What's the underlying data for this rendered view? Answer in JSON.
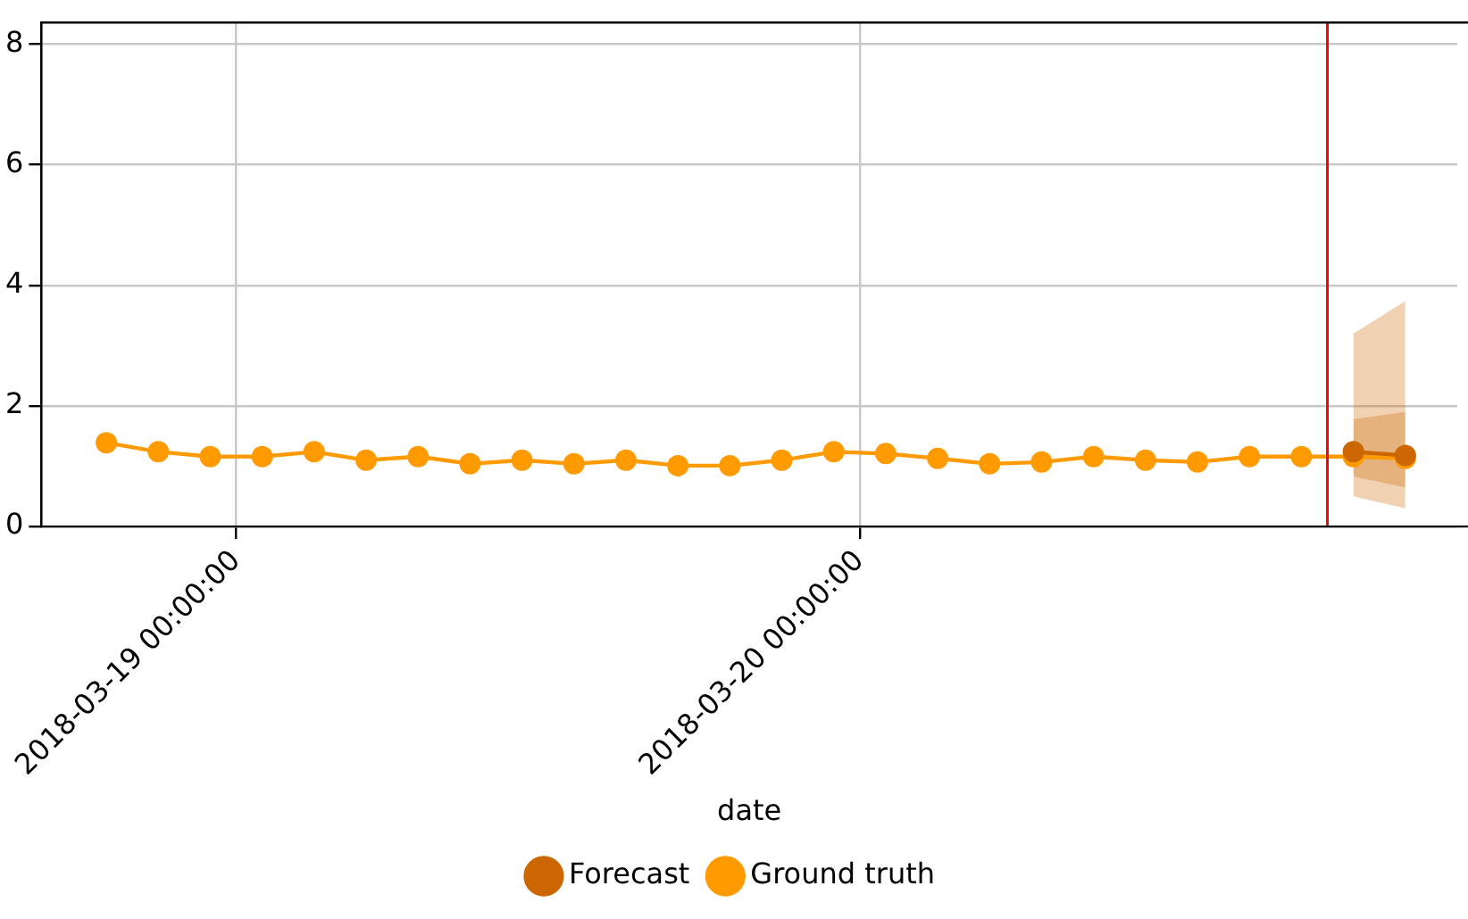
{
  "chart_data": {
    "type": "line",
    "xlabel": "date",
    "x": [
      "2018-03-18T19:00",
      "2018-03-18T21:00",
      "2018-03-18T23:00",
      "2018-03-19T01:00",
      "2018-03-19T03:00",
      "2018-03-19T05:00",
      "2018-03-19T07:00",
      "2018-03-19T09:00",
      "2018-03-19T11:00",
      "2018-03-19T13:00",
      "2018-03-19T15:00",
      "2018-03-19T17:00",
      "2018-03-19T19:00",
      "2018-03-19T21:00",
      "2018-03-19T23:00",
      "2018-03-20T01:00",
      "2018-03-20T03:00",
      "2018-03-20T05:00",
      "2018-03-20T07:00",
      "2018-03-20T09:00",
      "2018-03-20T11:00",
      "2018-03-20T13:00",
      "2018-03-20T15:00",
      "2018-03-20T17:00",
      "2018-03-20T19:00",
      "2018-03-20T21:00"
    ],
    "series": [
      {
        "name": "Ground truth",
        "color": "#ff9a00",
        "values": [
          1.39,
          1.24,
          1.16,
          1.16,
          1.24,
          1.1,
          1.16,
          1.04,
          1.1,
          1.04,
          1.1,
          1.01,
          1.01,
          1.1,
          1.24,
          1.21,
          1.13,
          1.04,
          1.07,
          1.16,
          1.1,
          1.07,
          1.16,
          1.16,
          1.16,
          1.13
        ]
      },
      {
        "name": "Forecast",
        "color": "#cc6600",
        "x": [
          "2018-03-20T19:00",
          "2018-03-20T21:00"
        ],
        "values": [
          1.24,
          1.18
        ],
        "lower": [
          0.83,
          0.65
        ],
        "upper": [
          1.78,
          1.9
        ]
      },
      {
        "color": "#cc6600",
        "x": [
          "2018-03-20T19:00",
          "2018-03-20T21:00"
        ],
        "values": [
          null,
          null
        ],
        "lower": [
          0.5,
          0.3
        ],
        "upper": [
          3.2,
          3.74
        ]
      }
    ],
    "xlim": [
      "2018-03-18T16:30",
      "2018-03-20T23:00"
    ],
    "xticks": [
      {
        "value": "2018-03-19",
        "label": "2018-03-19 00:00:00"
      },
      {
        "value": "2018-03-20",
        "label": "2018-03-20 00:00:00"
      }
    ],
    "ylim": [
      0,
      8.36
    ],
    "yticks": [
      0,
      2,
      4,
      6,
      8
    ],
    "ref_lines": [
      {
        "axis": "x",
        "value": "2018-03-20T18:00",
        "color": "#ff0000"
      }
    ],
    "grid": true,
    "legend": "bottom",
    "marker": "circle",
    "line_style": "solid"
  }
}
